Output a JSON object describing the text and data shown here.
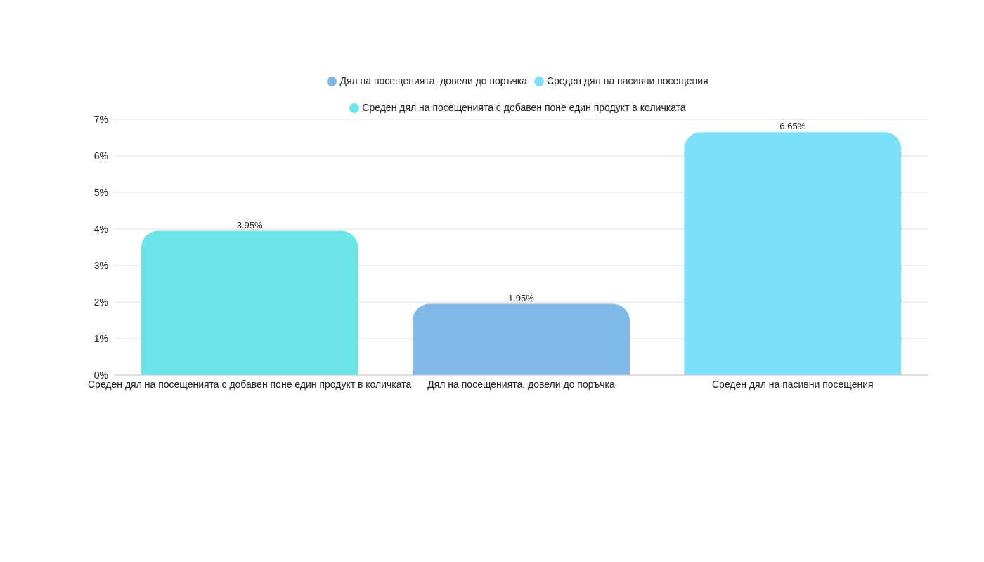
{
  "chart_data": {
    "type": "bar",
    "categories": [
      "Среден дял на посещенията с добавен поне един продукт в количката",
      "Дял на посещенията, довели до поръчка",
      "Среден дял на пасивни посещения"
    ],
    "stacked": true,
    "series": [
      {
        "name": "Среден дял на посещенията с добавен поне един продукт в количката",
        "color": "#6be5e8",
        "values": [
          3.95,
          null,
          null
        ],
        "value_labels": [
          "3.95%",
          null,
          null
        ]
      },
      {
        "name": "Дял на посещенията, довели до поръчка",
        "color": "#7fb9e7",
        "values": [
          null,
          1.95,
          null
        ],
        "value_labels": [
          null,
          "1.95%",
          null
        ]
      },
      {
        "name": "Среден дял на пасивни посещения",
        "color": "#7ce0fd",
        "values": [
          null,
          null,
          6.65
        ],
        "value_labels": [
          null,
          null,
          "6.65%"
        ]
      }
    ],
    "ylim": [
      0,
      7
    ],
    "yticks": [
      {
        "value": 0,
        "label": "0%"
      },
      {
        "value": 1,
        "label": "1%"
      },
      {
        "value": 2,
        "label": "2%"
      },
      {
        "value": 3,
        "label": "3%"
      },
      {
        "value": 4,
        "label": "4%"
      },
      {
        "value": 5,
        "label": "5%"
      },
      {
        "value": 6,
        "label": "6%"
      },
      {
        "value": 7,
        "label": "7%"
      }
    ],
    "grid": "y",
    "legend": "top"
  }
}
